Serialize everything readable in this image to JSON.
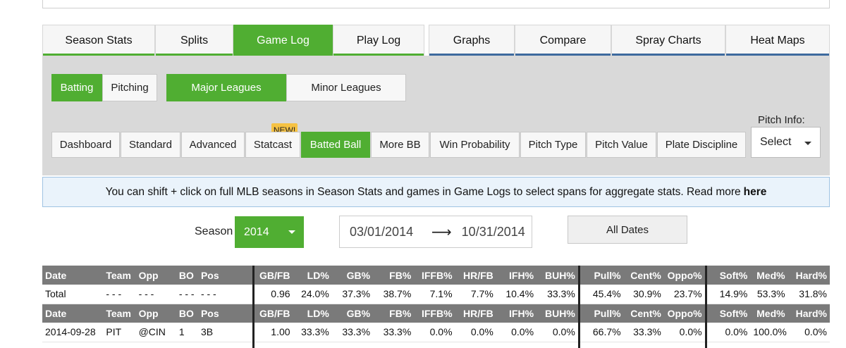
{
  "main_tabs": [
    {
      "label": "Season Stats",
      "active": false
    },
    {
      "label": "Splits",
      "active": false
    },
    {
      "label": "Game Log",
      "active": true
    },
    {
      "label": "Play Log",
      "active": false
    },
    {
      "label": "Graphs",
      "active": false
    },
    {
      "label": "Compare",
      "active": false
    },
    {
      "label": "Spray Charts",
      "active": false
    },
    {
      "label": "Heat Maps",
      "active": false
    }
  ],
  "type_toggle": {
    "batting": "Batting",
    "pitching": "Pitching",
    "selected": "Batting"
  },
  "league_toggle": {
    "major": "Major Leagues",
    "minor": "Minor Leagues",
    "selected": "Major Leagues"
  },
  "sub_tabs": [
    {
      "label": "Dashboard"
    },
    {
      "label": "Standard"
    },
    {
      "label": "Advanced"
    },
    {
      "label": "Statcast"
    },
    {
      "label": "Batted Ball"
    },
    {
      "label": "More BB"
    },
    {
      "label": "Win Probability"
    },
    {
      "label": "Pitch Type"
    },
    {
      "label": "Pitch Value"
    },
    {
      "label": "Plate Discipline"
    }
  ],
  "active_sub_tab": "Batted Ball",
  "new_badge": "NEW!",
  "pitch_info": {
    "label": "Pitch Info:",
    "value": "Select"
  },
  "info_bar": {
    "text": "You can shift + click on full MLB seasons in Season Stats and games in Game Logs to select spans for aggregate stats. Read more",
    "link": "here"
  },
  "season": {
    "label": "Season",
    "value": "2014"
  },
  "date_range": {
    "start": "03/01/2014",
    "arrow": "⟶",
    "end": "10/31/2014"
  },
  "all_dates": "All Dates",
  "table": {
    "headers": [
      "Date",
      "Team",
      "Opp",
      "BO",
      "Pos",
      "GB/FB",
      "LD%",
      "GB%",
      "FB%",
      "IFFB%",
      "HR/FB",
      "IFH%",
      "BUH%",
      "Pull%",
      "Cent%",
      "Oppo%",
      "Soft%",
      "Med%",
      "Hard%"
    ],
    "total_row": [
      "Total",
      "- - -",
      "- - -",
      "- - -",
      "- - -",
      "0.96",
      "24.0%",
      "37.3%",
      "38.7%",
      "7.1%",
      "7.7%",
      "10.4%",
      "33.3%",
      "45.4%",
      "30.9%",
      "23.7%",
      "14.9%",
      "53.3%",
      "31.8%"
    ],
    "game_rows": [
      [
        "2014-09-28",
        "PIT",
        "@CIN",
        "1",
        "3B",
        "1.00",
        "33.3%",
        "33.3%",
        "33.3%",
        "0.0%",
        "0.0%",
        "0.0%",
        "0.0%",
        "66.7%",
        "33.3%",
        "0.0%",
        "0.0%",
        "100.0%",
        "0.0%"
      ]
    ]
  },
  "colors": {
    "accent_green": "#50ae32",
    "accent_blue": "#3d6a9e",
    "panel_gray": "#d9d9d9",
    "header_gray": "#7a7a7a",
    "badge_yellow": "#f6c243"
  }
}
